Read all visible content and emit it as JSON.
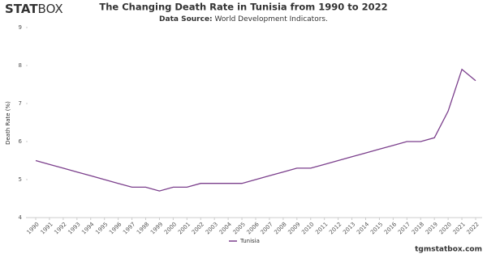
{
  "logo": {
    "bold": "STAT",
    "light": "BOX"
  },
  "footer": "tgmstatbox.com",
  "chart_data": {
    "type": "line",
    "title": "The Changing Death Rate in Tunisia from 1990 to 2022",
    "subtitle_label": "Data Source:",
    "subtitle": "World Development Indicators.",
    "y_label": "Death Rate (%)",
    "categories": [
      "1990",
      "1991",
      "1992",
      "1993",
      "1994",
      "1995",
      "1996",
      "1997",
      "1998",
      "1999",
      "2000",
      "2001",
      "2002",
      "2003",
      "2004",
      "2005",
      "2006",
      "2007",
      "2008",
      "2009",
      "2010",
      "2011",
      "2012",
      "2013",
      "2014",
      "2015",
      "2016",
      "2017",
      "2018",
      "2019",
      "2020",
      "2021",
      "2022"
    ],
    "series": [
      {
        "name": "Tunisia",
        "color": "#7b3f8c",
        "values": [
          5.5,
          5.4,
          5.3,
          5.2,
          5.1,
          5.0,
          4.9,
          4.8,
          4.8,
          4.7,
          4.8,
          4.8,
          4.9,
          4.9,
          4.9,
          4.9,
          5.0,
          5.1,
          5.2,
          5.3,
          5.3,
          5.4,
          5.5,
          5.6,
          5.7,
          5.8,
          5.9,
          6.0,
          6.0,
          6.1,
          6.8,
          7.9,
          7.6
        ]
      }
    ],
    "ylim": [
      4,
      9
    ],
    "yticks": [
      4,
      5,
      6,
      7,
      8,
      9
    ],
    "grid": false,
    "legend": "bottom"
  }
}
